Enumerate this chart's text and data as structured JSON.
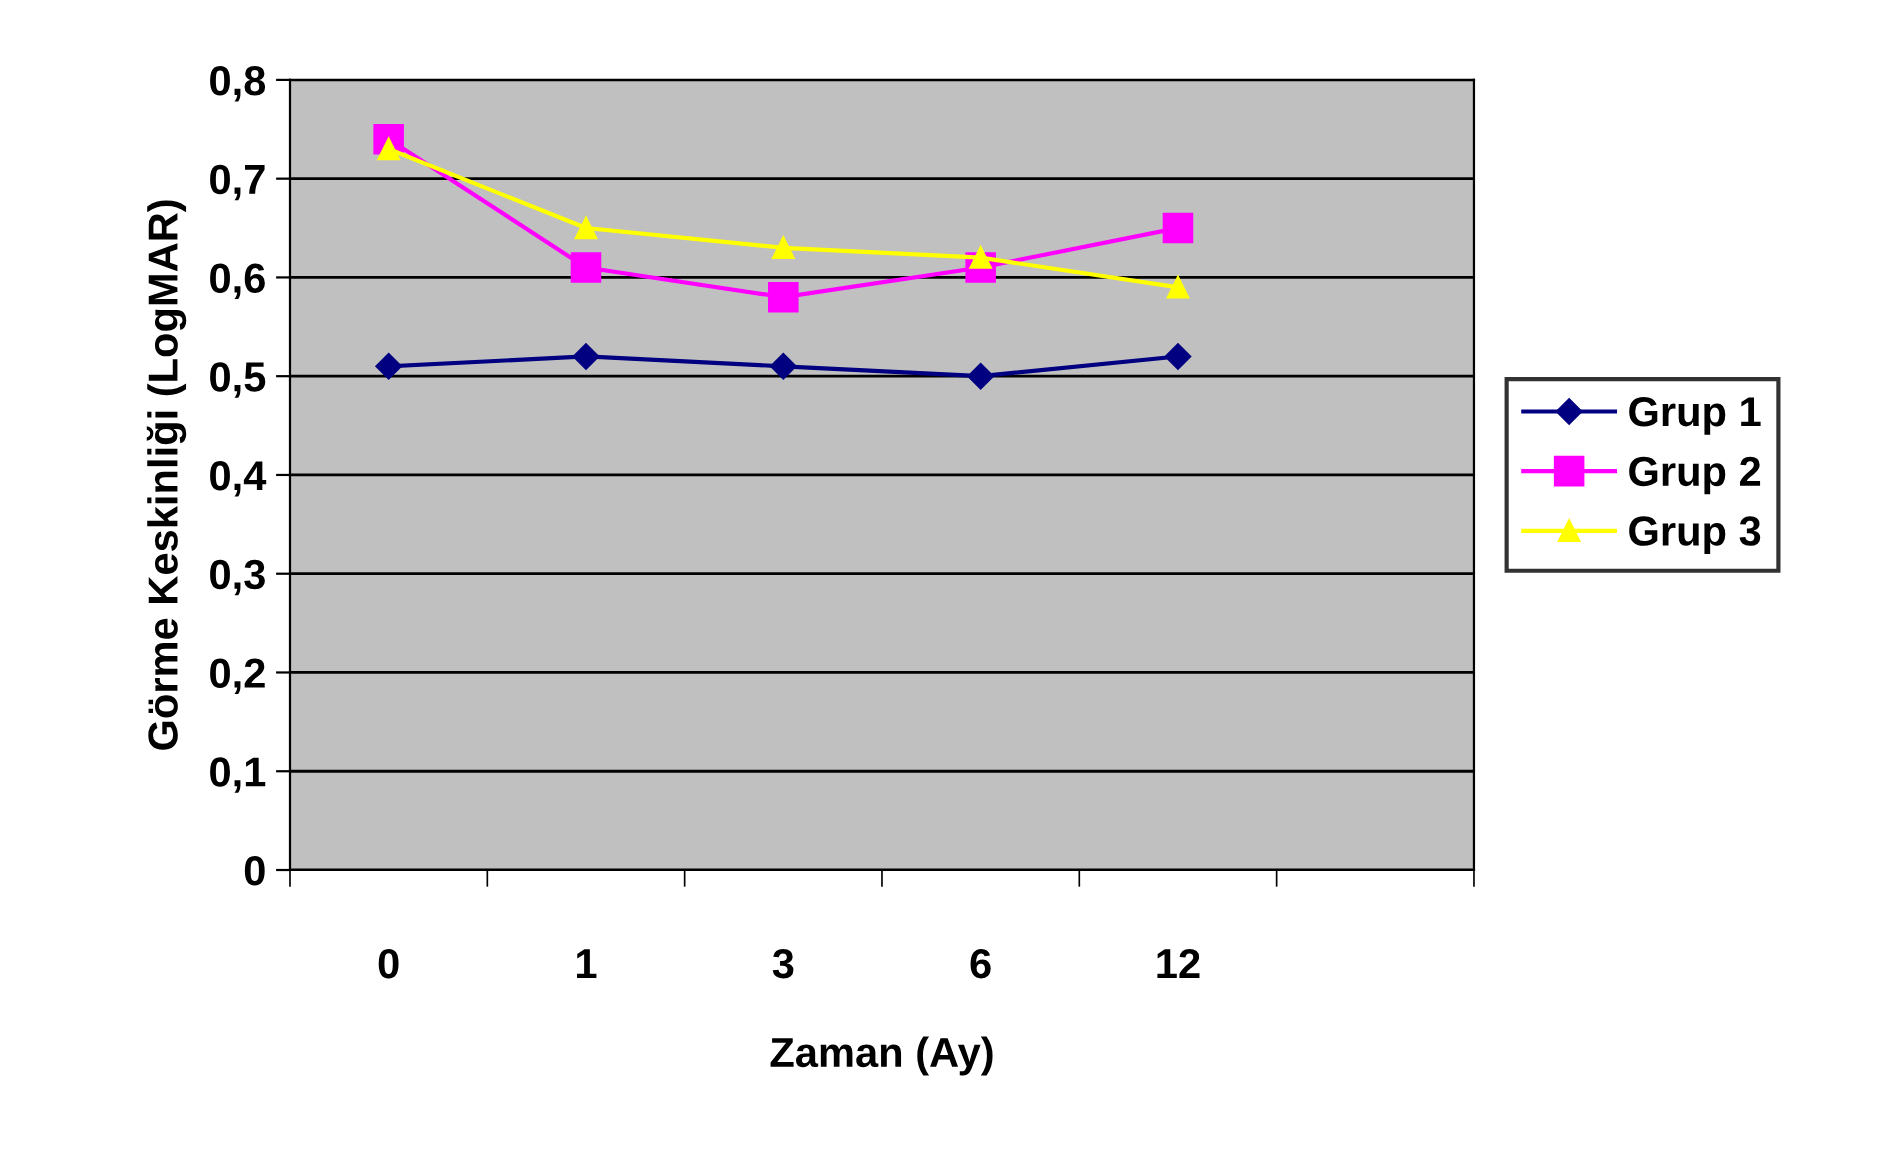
{
  "chart_data": {
    "type": "line",
    "xlabel": "Zaman (Ay)",
    "ylabel": "Görme Keskinliği (LogMAR)",
    "categories": [
      "0",
      "1",
      "3",
      "6",
      "12",
      null
    ],
    "ylim": [
      0,
      0.8
    ],
    "yticks": [
      0,
      {
        "value": 0.1,
        "label": "0,1"
      },
      {
        "value": 0.2,
        "label": "0,2"
      },
      {
        "value": 0.3,
        "label": "0,3"
      },
      {
        "value": 0.4,
        "label": "0,4"
      },
      {
        "value": 0.5,
        "label": "0,5"
      },
      {
        "value": 0.6,
        "label": "0,6"
      },
      {
        "value": 0.7,
        "label": "0,7"
      },
      {
        "value": 0.8,
        "label": "0,8"
      }
    ],
    "grid": "y",
    "legend": "right",
    "line_style": "solid",
    "series": [
      {
        "name": "Grup 1",
        "color": "#000080",
        "marker": "diamond",
        "values": [
          0.51,
          0.52,
          0.51,
          0.5,
          0.52,
          null
        ]
      },
      {
        "name": "Grup 2",
        "color": "#ff00ff",
        "marker": "square",
        "values": [
          0.74,
          0.61,
          0.58,
          0.61,
          0.65,
          null
        ]
      },
      {
        "name": "Grup 3",
        "color": "#ffff00",
        "marker": "triangle",
        "values": [
          0.73,
          0.65,
          0.63,
          0.62,
          0.59,
          null
        ]
      }
    ]
  }
}
